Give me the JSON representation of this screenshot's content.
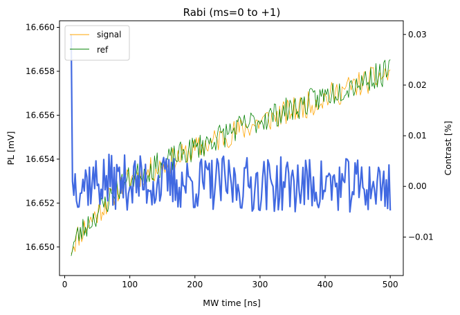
{
  "chart_data": {
    "type": "line",
    "title": "Rabi (ms=0 to +1)",
    "xlabel": "MW time [ns]",
    "ylabel": "PL [mV]",
    "y2label": "Contrast [%]",
    "xlim": [
      -8,
      520
    ],
    "ylim": [
      16.6487,
      16.6603
    ],
    "y2lim": [
      -0.0176,
      0.0327
    ],
    "xticks": [
      "0",
      "100",
      "200",
      "300",
      "400",
      "500"
    ],
    "yticks": [
      "16.650",
      "16.652",
      "16.654",
      "16.656",
      "16.658",
      "16.660"
    ],
    "y2ticks": [
      "−0.01",
      "0.00",
      "0.01",
      "0.02",
      "0.03"
    ],
    "legend_position": "upper-left",
    "colors": {
      "signal": "#FFA500",
      "ref": "#008000",
      "contrast": "#4169E1",
      "y2label": "#4169E1"
    },
    "x": {
      "start": 10,
      "end": 500,
      "step": 2
    },
    "series": [
      {
        "name": "signal",
        "axis": "left",
        "anchors": [
          [
            10,
            16.65
          ],
          [
            20,
            16.6505
          ],
          [
            40,
            16.6512
          ],
          [
            60,
            16.6519
          ],
          [
            80,
            16.6526
          ],
          [
            100,
            16.6531
          ],
          [
            150,
            16.6537
          ],
          [
            200,
            16.6544
          ],
          [
            250,
            16.6551
          ],
          [
            300,
            16.6557
          ],
          [
            350,
            16.6562
          ],
          [
            400,
            16.6568
          ],
          [
            450,
            16.6574
          ],
          [
            500,
            16.6579
          ]
        ],
        "noise": 0.0006
      },
      {
        "name": "ref",
        "axis": "left",
        "anchors": [
          [
            10,
            16.6499
          ],
          [
            20,
            16.6505
          ],
          [
            40,
            16.6512
          ],
          [
            60,
            16.6519
          ],
          [
            80,
            16.6526
          ],
          [
            100,
            16.6531
          ],
          [
            150,
            16.6538
          ],
          [
            200,
            16.6545
          ],
          [
            250,
            16.6552
          ],
          [
            300,
            16.6558
          ],
          [
            350,
            16.6563
          ],
          [
            400,
            16.6569
          ],
          [
            450,
            16.6575
          ],
          [
            500,
            16.658
          ]
        ],
        "noise": 0.0006
      },
      {
        "name": "contrast",
        "axis": "right",
        "anchors": [
          [
            10,
            0.03
          ],
          [
            12,
            0.001
          ],
          [
            500,
            0.0
          ]
        ],
        "noise": 0.0055
      }
    ]
  }
}
